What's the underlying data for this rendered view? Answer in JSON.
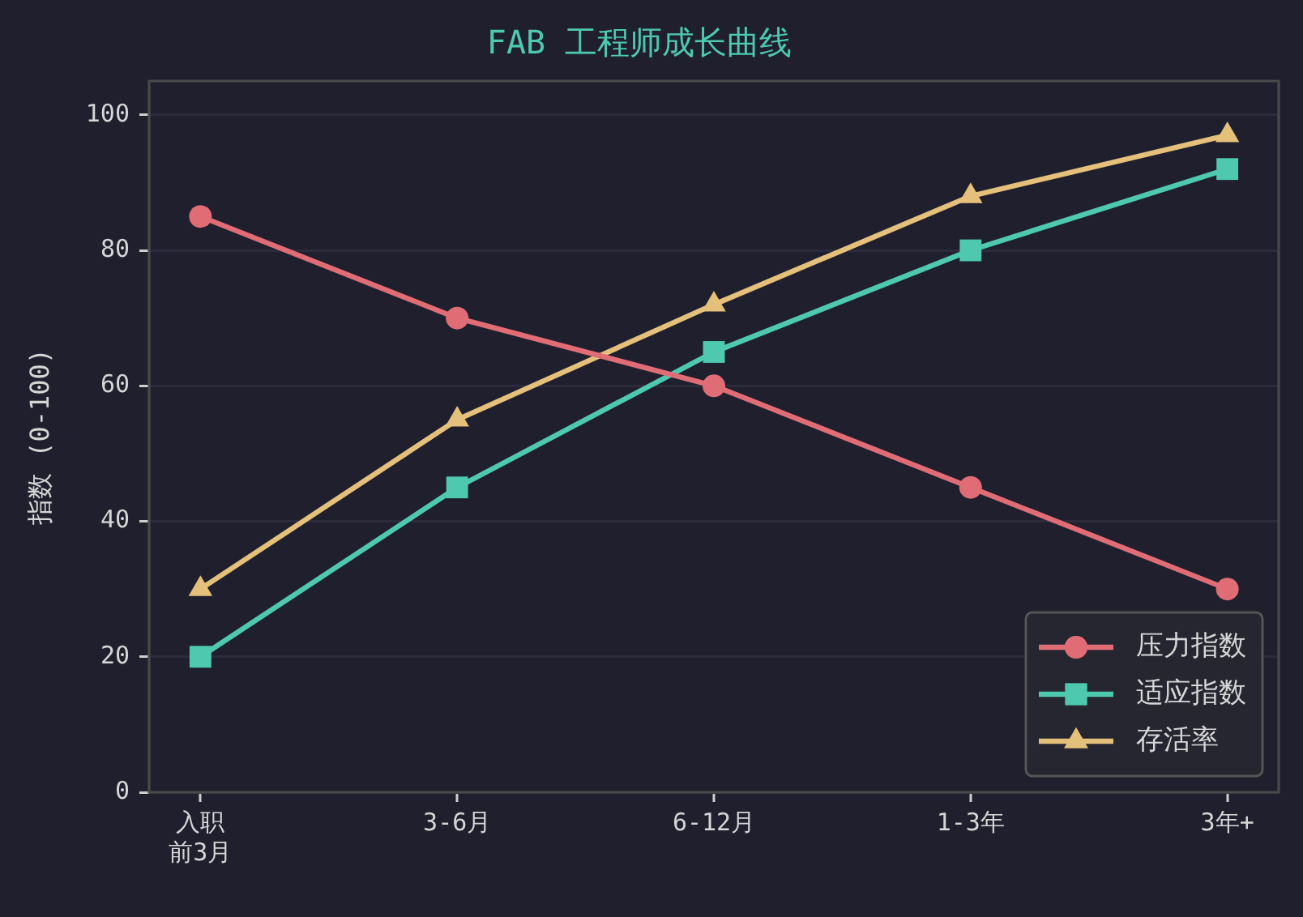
{
  "chart_data": {
    "type": "line",
    "title": "FAB 工程师成长曲线",
    "ylabel": "指数 (0-100)",
    "categories": [
      "入职前3月",
      "3-6月",
      "6-12月",
      "1-3年",
      "3年+"
    ],
    "series": [
      {
        "name": "压力指数",
        "color": "#e06c75",
        "marker": "circle",
        "values": [
          85,
          70,
          60,
          45,
          30
        ]
      },
      {
        "name": "适应指数",
        "color": "#4ec9b0",
        "marker": "square",
        "values": [
          20,
          45,
          65,
          80,
          92
        ]
      },
      {
        "name": "存活率",
        "color": "#e5c07b",
        "marker": "triangle",
        "values": [
          30,
          55,
          72,
          88,
          97
        ]
      }
    ],
    "ylim": [
      0,
      105
    ],
    "yticks": [
      0,
      20,
      40,
      60,
      80,
      100
    ],
    "grid": "y",
    "legend": "bottom right",
    "line_style": "solid"
  }
}
